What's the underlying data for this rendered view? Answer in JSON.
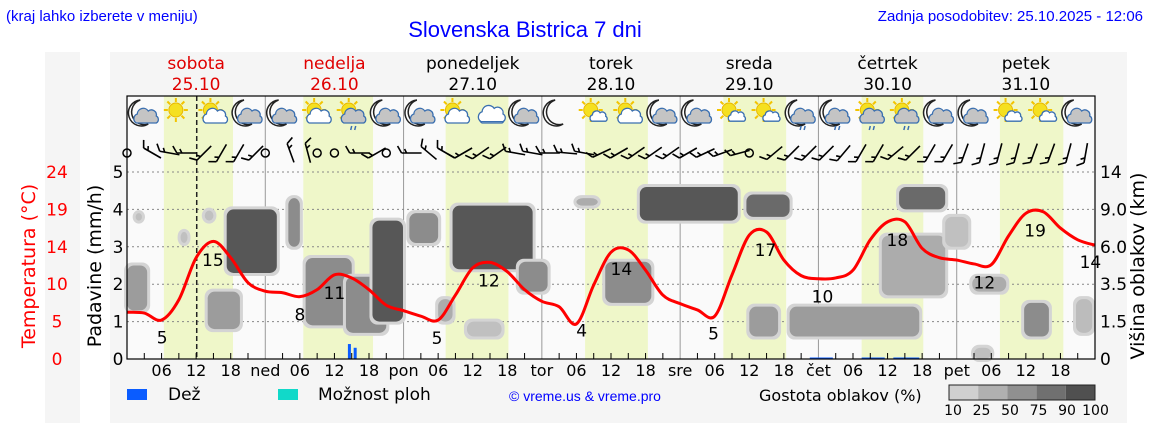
{
  "header": {
    "hint": "(kraj lahko izberete v meniju)",
    "title": "Slovenska Bistrica 7 dni",
    "updated": "Zadnja posodobitev: 25.10.2025 - 12:06"
  },
  "legend": {
    "rain_label": "Dež",
    "showers_label": "Možnost ploh",
    "copyright": "© vreme.us & vreme.pro",
    "cloud_density_label": "Gostota oblakov (%)",
    "density_levels": [
      "10",
      "25",
      "50",
      "75",
      "90",
      "100"
    ],
    "rain_color": "#0a5cff",
    "showers_color": "#11d9c9"
  },
  "chart_data": {
    "type": "line",
    "title": "Slovenska Bistrica 7 dni",
    "y_left_outer_label": "Temperatura (°C)",
    "y_left_label": "Padavine (mm/h)",
    "y_right_label": "Višina oblakov (km)",
    "temp_ticks": [
      "0",
      "5",
      "10",
      "14",
      "19",
      "24"
    ],
    "precip_ticks": [
      "0",
      "1",
      "2",
      "3",
      "4",
      "5"
    ],
    "cloud_ticks": [
      "0",
      "1.5",
      "3.5",
      "6.0",
      "9.0",
      "14"
    ],
    "cloud_tick_km": [
      0,
      1.5,
      3.5,
      6,
      9,
      14
    ],
    "temp_range": [
      0,
      24
    ],
    "precip_range": [
      0,
      5
    ],
    "now_hour": 12.1,
    "days": [
      {
        "name": "sobota",
        "date": "25.10",
        "abbr": "",
        "weekend": true,
        "daylight": [
          6.4,
          18.4
        ]
      },
      {
        "name": "nedelja",
        "date": "26.10",
        "abbr": "ned",
        "weekend": true,
        "daylight": [
          6.6,
          18.7
        ]
      },
      {
        "name": "ponedeljek",
        "date": "27.10",
        "abbr": "pon",
        "weekend": false,
        "daylight": [
          7.3,
          18.2
        ]
      },
      {
        "name": "torek",
        "date": "28.10",
        "abbr": "tor",
        "weekend": false,
        "daylight": [
          7.5,
          18.4
        ]
      },
      {
        "name": "sreda",
        "date": "29.10",
        "abbr": "sre",
        "weekend": false,
        "daylight": [
          7.5,
          18.4
        ]
      },
      {
        "name": "četrtek",
        "date": "30.10",
        "abbr": "čet",
        "weekend": false,
        "daylight": [
          7.5,
          18.2
        ]
      },
      {
        "name": "petek",
        "date": "31.10",
        "abbr": "pet",
        "weekend": false,
        "daylight": [
          7.5,
          18.5
        ]
      }
    ],
    "hour_labels": [
      "06",
      "12",
      "18"
    ],
    "temperature_3h": [
      6.0,
      5.9,
      5.0,
      7.6,
      13.0,
      15.1,
      13.0,
      9.8,
      8.7,
      8.5,
      8.0,
      8.9,
      10.8,
      10.4,
      8.9,
      6.9,
      6.2,
      5.5,
      5.0,
      8.2,
      11.7,
      12.4,
      11.2,
      8.9,
      7.4,
      6.7,
      4.5,
      9.5,
      13.7,
      14.0,
      11.4,
      8.2,
      7.1,
      6.3,
      5.5,
      10.8,
      15.9,
      16.3,
      12.7,
      10.7,
      10.3,
      10.4,
      11.4,
      15.3,
      17.6,
      17.6,
      14.2,
      13.0,
      12.7,
      12.2,
      12.1,
      15.8,
      18.7,
      18.9,
      16.8,
      15.3,
      14.6
    ],
    "temp_labels": [
      {
        "hour": 6.1,
        "value": "5"
      },
      {
        "hour": 14.9,
        "value": "15"
      },
      {
        "hour": 30,
        "value": "8"
      },
      {
        "hour": 36,
        "value": "11"
      },
      {
        "hour": 53.8,
        "value": "5"
      },
      {
        "hour": 62.8,
        "value": "12"
      },
      {
        "hour": 78.9,
        "value": "4"
      },
      {
        "hour": 85.8,
        "value": "14"
      },
      {
        "hour": 101.8,
        "value": "5"
      },
      {
        "hour": 110.8,
        "value": "17"
      },
      {
        "hour": 120.7,
        "value": "10"
      },
      {
        "hour": 133.7,
        "value": "18"
      },
      {
        "hour": 148.8,
        "value": "12"
      },
      {
        "hour": 157.6,
        "value": "19"
      },
      {
        "hour": 167.2,
        "value": "14"
      }
    ],
    "precipitation": [
      {
        "hour": 38.6,
        "mm": 0.4,
        "type": "rain"
      },
      {
        "hour": 39.6,
        "mm": 0.3,
        "type": "rain"
      },
      {
        "hour": 118.5,
        "mm": 0.03,
        "type": "rain",
        "span": 4
      },
      {
        "hour": 127.5,
        "mm": 0.03,
        "type": "rain",
        "span": 4
      },
      {
        "hour": 133,
        "mm": 0.03,
        "type": "rain",
        "span": 4.5
      }
    ],
    "clouds": [
      [
        0,
        3.5,
        2.1,
        4.75,
        50
      ],
      [
        1.5,
        2.6,
        8.1,
        8.7,
        25
      ],
      [
        9.3,
        10.5,
        6.3,
        7.2,
        25
      ],
      [
        13.5,
        15,
        8.1,
        8.9,
        25
      ],
      [
        14,
        19.6,
        1.2,
        3.1,
        50
      ],
      [
        17.3,
        26,
        4.25,
        9,
        90
      ],
      [
        28,
        30,
        6,
        10.5,
        60
      ],
      [
        31,
        39,
        1.35,
        5.25,
        60
      ],
      [
        38,
        45,
        1.05,
        4.0,
        60
      ],
      [
        42.6,
        47.9,
        1.5,
        8.1,
        90
      ],
      [
        49,
        54,
        6.3,
        8.7,
        60
      ],
      [
        54,
        56.5,
        1.5,
        2.7,
        40
      ],
      [
        56.5,
        70.4,
        4.5,
        9.5,
        90
      ],
      [
        59,
        65,
        0.9,
        1.5,
        25
      ],
      [
        68,
        73,
        3.1,
        5.0,
        60
      ],
      [
        78,
        81.7,
        9.5,
        10.5,
        40
      ],
      [
        83,
        91,
        2.5,
        5.0,
        60
      ],
      [
        89,
        106,
        8.1,
        12,
        90
      ],
      [
        107.5,
        115,
        8.4,
        11,
        80
      ],
      [
        108,
        113,
        0.9,
        2.3,
        50
      ],
      [
        115,
        137.5,
        0.9,
        2.3,
        50
      ],
      [
        131,
        142,
        2.9,
        6.9,
        40
      ],
      [
        134,
        142,
        9,
        12,
        80
      ],
      [
        142,
        146,
        6,
        8.4,
        25
      ],
      [
        146.7,
        152.6,
        3.1,
        4.0,
        40
      ],
      [
        147,
        150,
        0,
        0.45,
        25
      ],
      [
        155.7,
        160,
        0.9,
        2.5,
        60
      ],
      [
        164.7,
        167.5,
        1.05,
        2.7,
        30
      ]
    ],
    "weather_icons": [
      "moon-cloud",
      "sun",
      "sun-cloud",
      "moon-cloud",
      "moon-cloud",
      "sun-cloud",
      "sun-cloud-drizzle",
      "moon-cloud",
      "moon-cloud",
      "sun-cloud",
      "cloud",
      "moon-cloud",
      "moon",
      "sun-small-cloud",
      "sun-cloud",
      "moon-cloud",
      "moon-cloud",
      "sun-small-cloud",
      "sun-small-cloud",
      "moon-cloud-drizzle",
      "moon-cloud-drizzle",
      "sun-cloud-drizzle",
      "sun-cloud-drizzle",
      "moon-cloud",
      "moon-cloud",
      "sun-small-cloud",
      "sun-small-cloud",
      "moon-cloud"
    ],
    "wind_3h": [
      "calm",
      -30,
      -10,
      0,
      45,
      60,
      60,
      45,
      "calm",
      -70,
      -75,
      "calm",
      "calm",
      0,
      30,
      "calm",
      0,
      -40,
      -30,
      30,
      35,
      35,
      -10,
      -10,
      0,
      -5,
      -10,
      25,
      30,
      35,
      35,
      35,
      30,
      25,
      20,
      15,
      "calm",
      40,
      45,
      45,
      45,
      50,
      60,
      60,
      40,
      45,
      60,
      60,
      70,
      75,
      75,
      75,
      70,
      70,
      75,
      80
    ]
  }
}
